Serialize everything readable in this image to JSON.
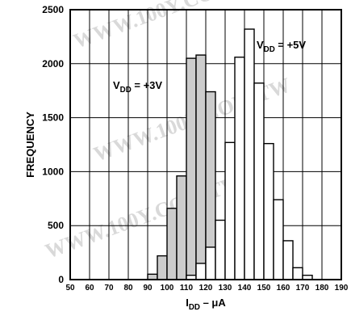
{
  "chart_data": {
    "type": "bar",
    "title": "",
    "xlabel": {
      "main": "I",
      "sub": "DD",
      "rest": " – μA"
    },
    "ylabel": "FREQUENCY",
    "xlim": [
      50,
      190
    ],
    "ylim": [
      0,
      2500
    ],
    "x_ticks": [
      50,
      60,
      70,
      80,
      90,
      100,
      110,
      120,
      130,
      140,
      150,
      160,
      170,
      180,
      190
    ],
    "y_ticks": [
      0,
      500,
      1000,
      1500,
      2000,
      2500
    ],
    "grid": true,
    "bin_width": 5,
    "series": [
      {
        "label": {
          "main": "V",
          "sub": "DD",
          "rest": " = +3V"
        },
        "fill": "#cccccc",
        "bins": [
          {
            "x": 90,
            "value": 50
          },
          {
            "x": 95,
            "value": 220
          },
          {
            "x": 100,
            "value": 660
          },
          {
            "x": 105,
            "value": 960
          },
          {
            "x": 110,
            "value": 2050
          },
          {
            "x": 115,
            "value": 2080
          },
          {
            "x": 120,
            "value": 1740
          },
          {
            "x": 125,
            "value": 0
          }
        ]
      },
      {
        "label": {
          "main": "V",
          "sub": "DD",
          "rest": " = +5V"
        },
        "fill": "#ffffff",
        "bins": [
          {
            "x": 110,
            "value": 40
          },
          {
            "x": 115,
            "value": 150
          },
          {
            "x": 120,
            "value": 300
          },
          {
            "x": 125,
            "value": 550
          },
          {
            "x": 130,
            "value": 1270
          },
          {
            "x": 135,
            "value": 2060
          },
          {
            "x": 140,
            "value": 2320
          },
          {
            "x": 145,
            "value": 1820
          },
          {
            "x": 150,
            "value": 1260
          },
          {
            "x": 155,
            "value": 740
          },
          {
            "x": 160,
            "value": 360
          },
          {
            "x": 165,
            "value": 110
          },
          {
            "x": 170,
            "value": 40
          }
        ]
      }
    ]
  }
}
